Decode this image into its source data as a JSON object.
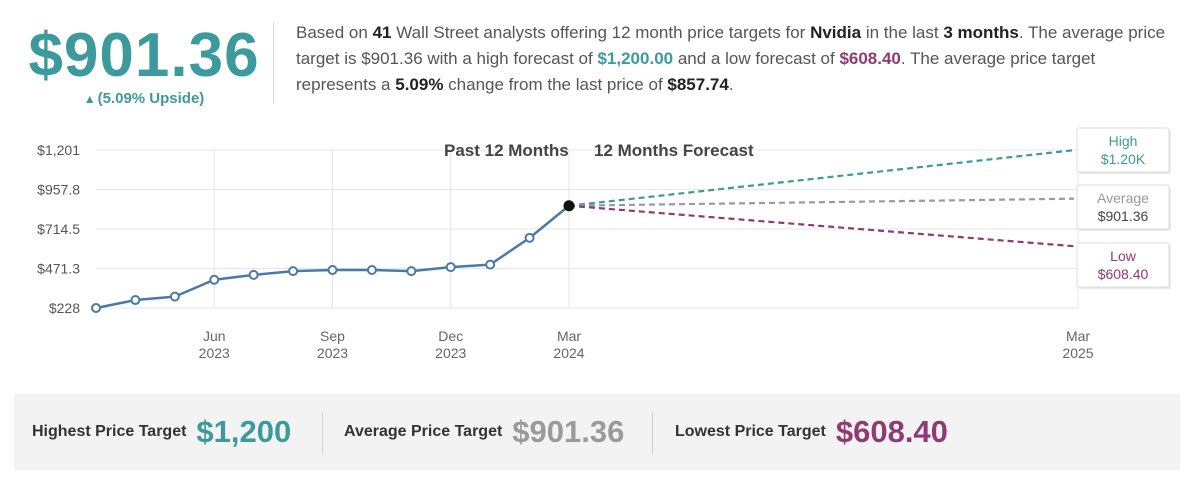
{
  "summary": {
    "price": "$901.36",
    "upside_arrow": "▲",
    "upside": "(5.09% Upside)",
    "desc": {
      "p1": "Based on ",
      "analysts": "41",
      "p2": " Wall Street analysts offering 12 month price targets for ",
      "company": "Nvidia",
      "p3": " in the last ",
      "months": "3 months",
      "p4": ". The average price target is $901.36 with a high forecast of ",
      "high": "$1,200.00",
      "p5": " and a low forecast of ",
      "low": "$608.40",
      "p6": ". The average price target represents a ",
      "change": "5.09%",
      "p7": " change from the last price of ",
      "last": "$857.74",
      "p8": "."
    }
  },
  "colors": {
    "teal": "#3c9a9c",
    "line": "#4a79a8",
    "gray": "#9a9a9a",
    "purple": "#8e3a74"
  },
  "chart_data": {
    "type": "line",
    "title_past": "Past 12 Months",
    "title_forecast": "12 Months Forecast",
    "y_ticks": [
      "$1,201",
      "$957.8",
      "$714.5",
      "$471.3",
      "$228"
    ],
    "y_tick_values": [
      1201,
      957.8,
      714.5,
      471.3,
      228
    ],
    "ylim": [
      228,
      1201
    ],
    "x_ticks": [
      {
        "m": "Jun",
        "y": "2023",
        "t": 3
      },
      {
        "m": "Sep",
        "y": "2023",
        "t": 6
      },
      {
        "m": "Dec",
        "y": "2023",
        "t": 9
      },
      {
        "m": "Mar",
        "y": "2024",
        "t": 12
      },
      {
        "m": "Mar",
        "y": "2025",
        "t": 24
      }
    ],
    "series": [
      {
        "t": [
          0,
          1,
          2,
          3,
          4,
          5,
          6,
          7,
          8,
          9,
          10,
          11,
          12
        ],
        "values": [
          228,
          277,
          298,
          402,
          432,
          455,
          462,
          462,
          455,
          480,
          495,
          660,
          857.74
        ]
      }
    ],
    "forecast": [
      {
        "name": "High",
        "label": "$1.20K",
        "value": 1200,
        "color": "#3c9a9c"
      },
      {
        "name": "Average",
        "label": "$901.36",
        "value": 901.36,
        "color": "#9a9a9a"
      },
      {
        "name": "Low",
        "label": "$608.40",
        "value": 608.4,
        "color": "#8e3a74"
      }
    ]
  },
  "bottom": {
    "high_label": "Highest Price Target",
    "high_value": "$1,200",
    "avg_label": "Average Price Target",
    "avg_value": "$901.36",
    "low_label": "Lowest Price Target",
    "low_value": "$608.40"
  }
}
